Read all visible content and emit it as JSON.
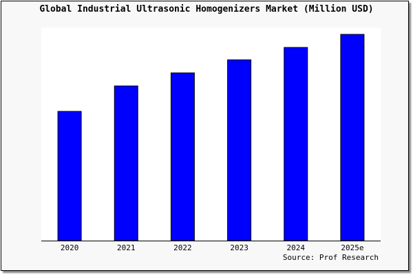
{
  "chart_data": {
    "type": "bar",
    "title": "Global Industrial Ultrasonic Homogenizers Market (Million USD)",
    "categories": [
      "2020",
      "2021",
      "2022",
      "2023",
      "2024",
      "2025e"
    ],
    "values": [
      188,
      225,
      244,
      263,
      281,
      300
    ],
    "xlabel": "",
    "ylabel": "",
    "ylim": [
      0,
      310
    ],
    "grid": false,
    "bar_color": "#0000ff",
    "source": "Source: Prof Research"
  }
}
